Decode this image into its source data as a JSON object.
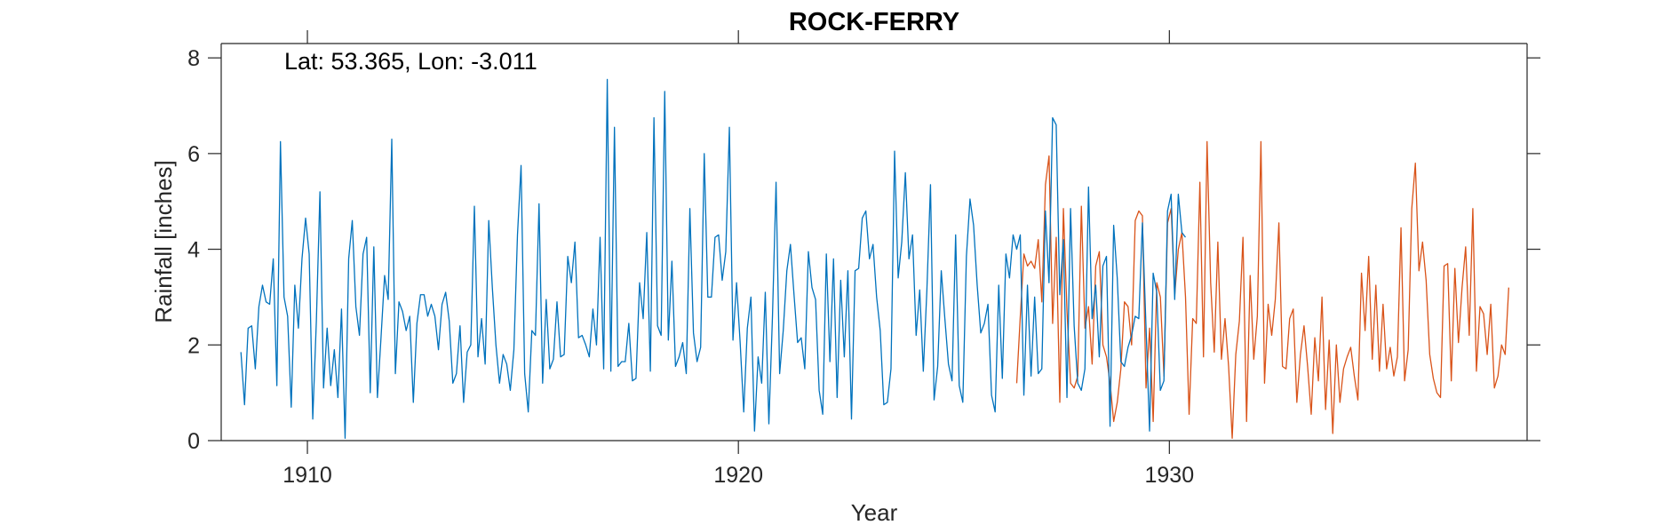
{
  "chart_data": {
    "type": "line",
    "title": "ROCK-FERRY",
    "xlabel": "Year",
    "ylabel": "Rainfall [inches]",
    "annotation": "Lat: 53.365, Lon: -3.011",
    "xlim": [
      1908,
      1938.3
    ],
    "ylim": [
      0,
      8.3
    ],
    "xticks": [
      1910,
      1920,
      1930
    ],
    "yticks": [
      0,
      2,
      4,
      6,
      8
    ],
    "grid": false,
    "colors": {
      "series1": "#0072BD",
      "series2": "#D95319",
      "axes": "#262626"
    },
    "series": [
      {
        "start": 1908.458,
        "step": 0.08333,
        "values": [
          1.85,
          0.75,
          2.35,
          2.4,
          1.5,
          2.8,
          3.25,
          2.9,
          2.85,
          3.8,
          1.15,
          6.25,
          3.0,
          2.6,
          0.7,
          3.25,
          2.35,
          3.8,
          4.65,
          3.9,
          0.45,
          2.5,
          5.2,
          1.1,
          2.35,
          1.15,
          1.9,
          0.9,
          2.75,
          0.05,
          3.8,
          4.6,
          2.8,
          2.2,
          3.9,
          4.25,
          1.0,
          4.05,
          0.9,
          2.15,
          3.45,
          2.95,
          6.3,
          1.4,
          2.9,
          2.7,
          2.3,
          2.6,
          0.8,
          2.45,
          3.05,
          3.05,
          2.6,
          2.85,
          2.6,
          1.9,
          2.85,
          3.1,
          2.5,
          1.2,
          1.4,
          2.4,
          0.8,
          1.85,
          2.0,
          4.9,
          1.75,
          2.55,
          1.6,
          4.6,
          3.2,
          2.0,
          1.2,
          1.8,
          1.6,
          1.05,
          1.9,
          4.3,
          5.75,
          1.4,
          0.6,
          2.3,
          2.2,
          4.95,
          1.2,
          2.95,
          1.5,
          1.7,
          2.9,
          1.75,
          1.8,
          3.85,
          3.3,
          4.15,
          2.15,
          2.2,
          2.0,
          1.75,
          2.75,
          2.0,
          4.25,
          1.5,
          7.55,
          1.45,
          6.55,
          1.55,
          1.65,
          1.65,
          2.45,
          1.25,
          1.3,
          3.3,
          2.55,
          4.35,
          1.45,
          6.75,
          2.4,
          2.2,
          7.3,
          2.1,
          3.75,
          1.55,
          1.75,
          2.05,
          1.4,
          4.85,
          2.25,
          1.65,
          1.95,
          6.0,
          3.0,
          3.0,
          4.25,
          4.3,
          3.35,
          3.95,
          6.55,
          2.1,
          3.3,
          2.05,
          0.6,
          2.35,
          3.0,
          0.2,
          1.75,
          1.2,
          3.1,
          0.35,
          2.6,
          5.4,
          1.4,
          2.3,
          3.55,
          4.1,
          3.05,
          2.05,
          2.15,
          1.5,
          3.95,
          3.2,
          2.95,
          1.05,
          0.55,
          3.9,
          1.65,
          3.8,
          0.9,
          3.35,
          1.75,
          3.55,
          0.45,
          3.55,
          3.6,
          4.65,
          4.8,
          3.8,
          4.1,
          3.0,
          2.3,
          0.75,
          0.8,
          1.5,
          6.05,
          3.4,
          4.15,
          5.6,
          3.8,
          4.3,
          2.2,
          3.15,
          1.45,
          3.15,
          5.35,
          0.85,
          1.55,
          3.55,
          2.55,
          1.6,
          1.25,
          4.3,
          1.15,
          0.8,
          3.85,
          5.05,
          4.5,
          3.25,
          2.25,
          2.45,
          2.85,
          0.95,
          0.6,
          3.25,
          1.3,
          3.9,
          3.4,
          4.3,
          4.0,
          4.3,
          0.95,
          3.25,
          1.35,
          3.0,
          1.4,
          1.5,
          4.8,
          3.3,
          6.75,
          6.6,
          3.05,
          4.2,
          0.9,
          4.85,
          2.4,
          1.2,
          1.05,
          1.5,
          5.3,
          2.55,
          3.25,
          1.75,
          3.65,
          3.85,
          0.3,
          4.5,
          3.4,
          1.65,
          1.55,
          1.95,
          2.2,
          2.6,
          2.55,
          4.55,
          2.4,
          0.2,
          3.5,
          3.1,
          1.05,
          1.25,
          4.8,
          5.15,
          2.95,
          5.15,
          4.35,
          4.25
        ]
      },
      {
        "start": 1926.458,
        "step": 0.08333,
        "values": [
          1.2,
          2.6,
          3.9,
          3.65,
          3.75,
          3.6,
          4.2,
          2.9,
          5.35,
          5.95,
          2.45,
          4.25,
          0.8,
          4.85,
          2.7,
          1.2,
          1.1,
          1.35,
          4.9,
          2.35,
          2.8,
          1.6,
          3.65,
          3.95,
          2.0,
          1.75,
          1.2,
          0.4,
          0.8,
          1.5,
          2.9,
          2.8,
          2.0,
          4.6,
          4.8,
          4.7,
          1.1,
          2.35,
          0.4,
          3.3,
          3.0,
          1.35,
          4.55,
          4.85,
          3.05,
          4.0,
          4.35,
          3.0,
          0.55,
          2.55,
          2.45,
          5.4,
          1.75,
          6.25,
          3.3,
          1.85,
          4.15,
          1.7,
          2.55,
          1.55,
          0.05,
          1.8,
          2.5,
          4.25,
          0.4,
          3.45,
          1.7,
          2.6,
          6.25,
          1.2,
          2.85,
          2.2,
          2.95,
          4.55,
          1.55,
          1.5,
          2.55,
          2.75,
          0.8,
          1.8,
          2.4,
          1.55,
          0.55,
          2.15,
          1.25,
          3.0,
          0.65,
          2.1,
          0.15,
          2.0,
          0.8,
          1.5,
          1.75,
          1.95,
          1.35,
          0.85,
          3.5,
          2.3,
          3.85,
          1.7,
          3.25,
          1.45,
          2.85,
          1.5,
          1.95,
          1.35,
          1.75,
          4.45,
          1.25,
          1.9,
          4.85,
          5.8,
          3.55,
          4.15,
          3.35,
          1.8,
          1.3,
          1.0,
          0.9,
          3.65,
          3.7,
          1.25,
          3.6,
          2.05,
          3.2,
          4.05,
          2.2,
          4.85,
          1.45,
          2.8,
          2.65,
          1.8,
          2.85,
          1.1,
          1.35,
          2.0,
          1.8,
          3.2
        ]
      }
    ]
  }
}
